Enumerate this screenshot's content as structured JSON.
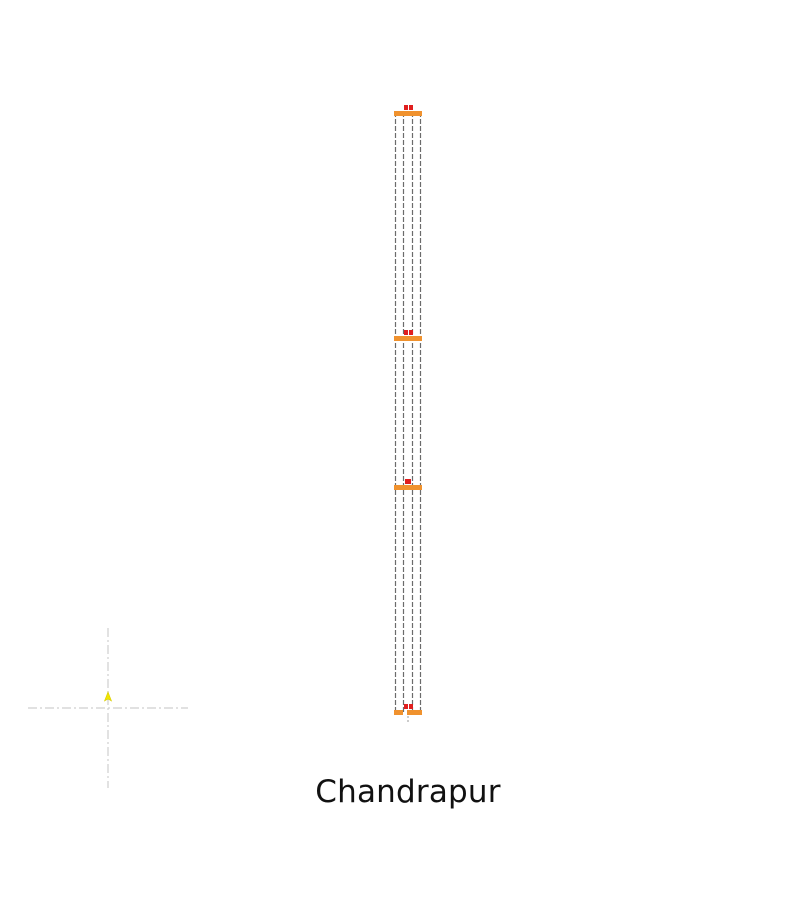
{
  "drawing": {
    "caption": "Chandrapur",
    "colors": {
      "background": "#ffffff",
      "line": "#6b6b6b",
      "bracket": "#f0922e",
      "marker": "#e01e1e",
      "origin_arrow": "#f2e600",
      "crosshair": "#cfcfcf"
    },
    "elements": {
      "rails": "vertical-column-rails",
      "brackets": "cross-bracket",
      "markers": "junction-marker",
      "origin": "origin-crosshair"
    }
  }
}
